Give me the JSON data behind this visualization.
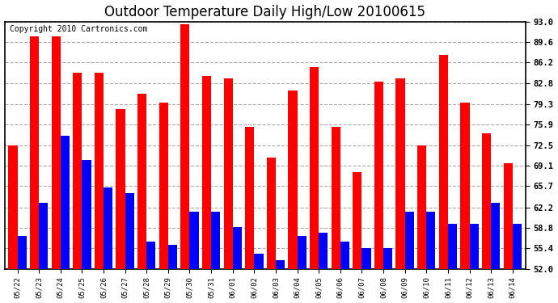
{
  "title": "Outdoor Temperature Daily High/Low 20100615",
  "copyright": "Copyright 2010 Cartronics.com",
  "categories": [
    "05/22",
    "05/23",
    "05/24",
    "05/25",
    "05/26",
    "05/27",
    "05/28",
    "05/29",
    "05/30",
    "05/31",
    "06/01",
    "06/02",
    "06/03",
    "06/04",
    "06/05",
    "06/06",
    "06/07",
    "06/08",
    "06/09",
    "06/10",
    "06/11",
    "06/12",
    "06/13",
    "06/14"
  ],
  "highs": [
    72.5,
    90.5,
    90.5,
    84.5,
    84.5,
    78.5,
    81.0,
    79.5,
    92.5,
    84.0,
    83.5,
    75.5,
    70.5,
    81.5,
    85.5,
    75.5,
    68.0,
    83.0,
    83.5,
    72.5,
    87.5,
    79.5,
    74.5,
    69.5
  ],
  "lows": [
    57.5,
    63.0,
    74.0,
    70.0,
    65.5,
    64.5,
    56.5,
    56.0,
    61.5,
    61.5,
    59.0,
    54.5,
    53.5,
    57.5,
    58.0,
    56.5,
    55.5,
    55.5,
    61.5,
    61.5,
    59.5,
    59.5,
    63.0,
    59.5
  ],
  "high_color": "#FF0000",
  "low_color": "#0000FF",
  "ymin": 52.0,
  "ymax": 93.0,
  "yticks": [
    52.0,
    55.4,
    58.8,
    62.2,
    65.7,
    69.1,
    72.5,
    75.9,
    79.3,
    82.8,
    86.2,
    89.6,
    93.0
  ],
  "background_color": "#ffffff",
  "grid_color": "#aaaaaa",
  "title_fontsize": 12,
  "copyright_fontsize": 7,
  "bar_width": 0.42
}
